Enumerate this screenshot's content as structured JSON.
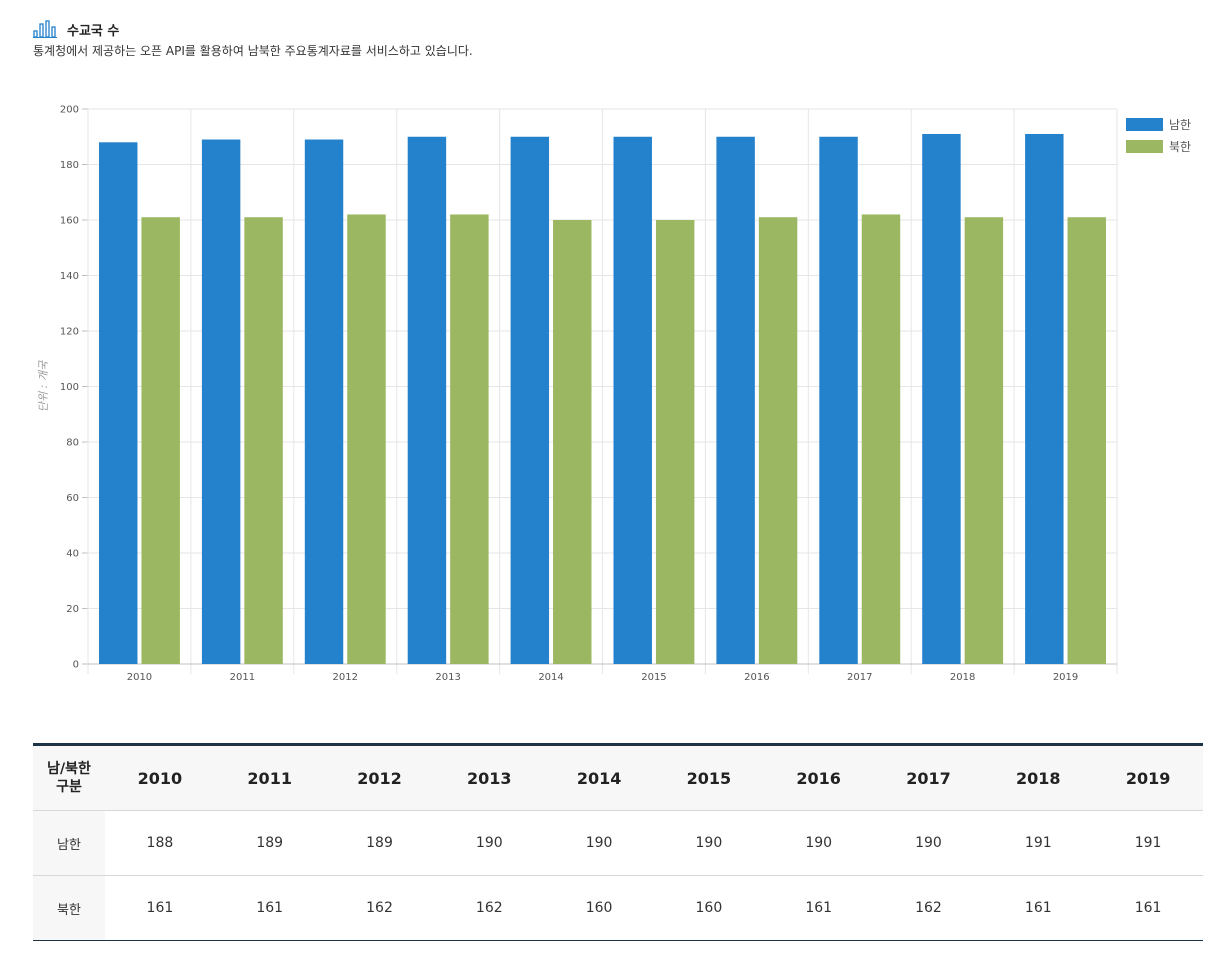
{
  "page": {
    "title": "수교국 수",
    "subtitle": "통계청에서 제공하는 오픈 API를 활용하여 남북한 주요통계자료를 서비스하고 있습니다."
  },
  "chart_data": {
    "type": "bar",
    "categories": [
      "2010",
      "2011",
      "2012",
      "2013",
      "2014",
      "2015",
      "2016",
      "2017",
      "2018",
      "2019"
    ],
    "series": [
      {
        "name": "남한",
        "values": [
          188,
          189,
          189,
          190,
          190,
          190,
          190,
          190,
          191,
          191
        ],
        "color": "#2481cc"
      },
      {
        "name": "북한",
        "values": [
          161,
          161,
          162,
          162,
          160,
          160,
          161,
          162,
          161,
          161
        ],
        "color": "#9bb761"
      }
    ],
    "ylabel": "단위 : 개국",
    "ylim": [
      0,
      200
    ],
    "yticks": [
      0,
      20,
      40,
      60,
      80,
      100,
      120,
      140,
      160,
      180,
      200
    ],
    "grid": true,
    "legend": "top-right"
  },
  "table": {
    "corner": "남/북한\n구분",
    "corner_line1": "남/북한",
    "corner_line2": "구분",
    "rows": [
      {
        "label": "남한"
      },
      {
        "label": "북한"
      }
    ]
  }
}
